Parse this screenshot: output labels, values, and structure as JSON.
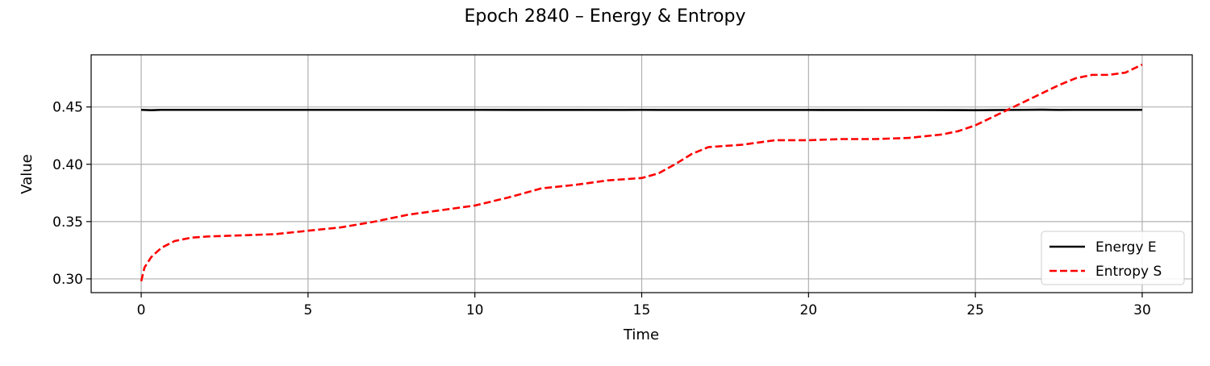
{
  "chart_data": {
    "type": "line",
    "title": "Epoch 2840 – Energy & Entropy",
    "xlabel": "Time",
    "ylabel": "Value",
    "xlim": [
      -1.5,
      31.5
    ],
    "ylim": [
      0.288,
      0.4955
    ],
    "xticks": [
      0,
      5,
      10,
      15,
      20,
      25,
      30
    ],
    "xtick_labels": [
      "0",
      "5",
      "10",
      "15",
      "20",
      "25",
      "30"
    ],
    "yticks": [
      0.3,
      0.35,
      0.4,
      0.45
    ],
    "ytick_labels": [
      "0.30",
      "0.35",
      "0.40",
      "0.45"
    ],
    "grid": true,
    "legend_position": "lower-right",
    "series": [
      {
        "name": "Energy E",
        "color": "#000000",
        "style": "solid",
        "x": [
          0,
          0.3,
          0.6,
          1,
          2,
          5,
          10,
          14.5,
          15,
          15.5,
          20,
          24.5,
          25,
          26,
          27,
          27.5,
          28,
          30
        ],
        "y": [
          0.4475,
          0.4472,
          0.4475,
          0.4475,
          0.4475,
          0.4475,
          0.4475,
          0.4474,
          0.4475,
          0.4474,
          0.4474,
          0.4473,
          0.4472,
          0.4474,
          0.4476,
          0.4474,
          0.4475,
          0.4475
        ]
      },
      {
        "name": "Entropy S",
        "color": "#ff0000",
        "style": "dashed",
        "x": [
          0,
          0.1,
          0.3,
          0.6,
          1,
          1.5,
          2,
          3,
          4,
          5,
          6,
          7,
          8,
          9,
          10,
          11,
          12,
          13,
          14,
          15,
          15.5,
          16,
          16.5,
          17,
          17.5,
          18,
          19,
          19.5,
          20,
          21,
          22,
          23,
          24,
          24.5,
          25,
          25.5,
          26,
          26.5,
          27,
          27.5,
          28,
          28.5,
          29,
          29.5,
          30
        ],
        "y": [
          0.298,
          0.31,
          0.319,
          0.327,
          0.333,
          0.336,
          0.337,
          0.338,
          0.339,
          0.342,
          0.345,
          0.35,
          0.356,
          0.36,
          0.364,
          0.371,
          0.379,
          0.382,
          0.386,
          0.388,
          0.392,
          0.4,
          0.409,
          0.415,
          0.416,
          0.417,
          0.421,
          0.421,
          0.421,
          0.422,
          0.422,
          0.423,
          0.426,
          0.429,
          0.434,
          0.441,
          0.448,
          0.455,
          0.462,
          0.469,
          0.475,
          0.478,
          0.478,
          0.48,
          0.487
        ]
      }
    ]
  }
}
